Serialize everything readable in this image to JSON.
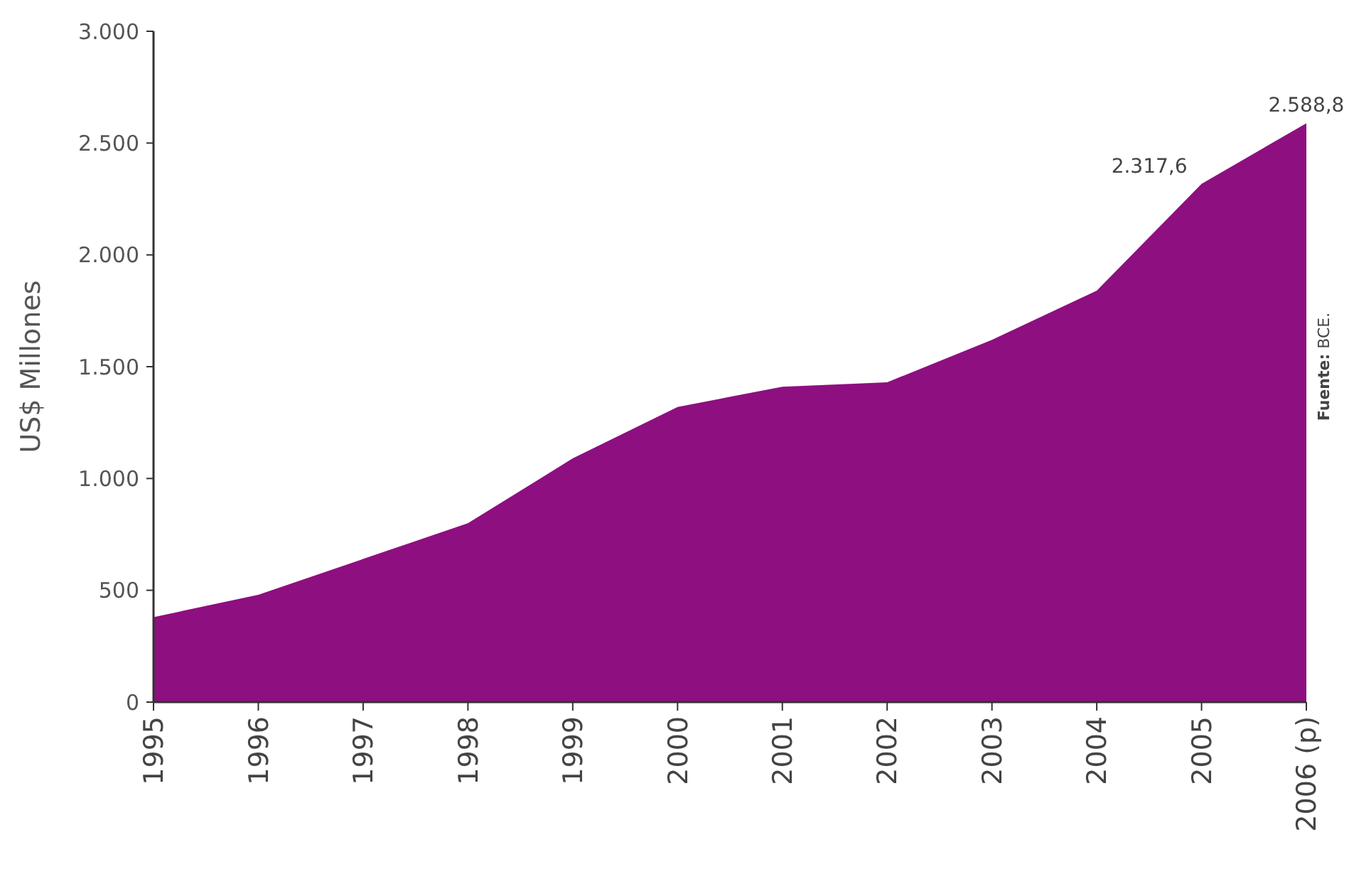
{
  "chart_data": {
    "type": "area",
    "ylabel": "US$ Millones",
    "categories": [
      "1995",
      "1996",
      "1997",
      "1998",
      "1999",
      "2000",
      "2001",
      "2002",
      "2003",
      "2004",
      "2005",
      "2006 (p)"
    ],
    "series": [
      {
        "color": "#8e0f80",
        "values": [
          380,
          480,
          640,
          800,
          1090,
          1320,
          1410,
          1430,
          1620,
          1840,
          2317.6,
          2588.8
        ],
        "value_labels": [
          null,
          null,
          null,
          null,
          null,
          null,
          null,
          null,
          null,
          null,
          "2.317,6",
          "2.588,8"
        ]
      }
    ],
    "ylim": [
      0,
      3000
    ],
    "yticks": [
      0,
      500,
      {
        "value": 1000,
        "label": "1.000"
      },
      {
        "value": 1500,
        "label": "1.500"
      },
      {
        "value": 2000,
        "label": "2.000"
      },
      {
        "value": 2500,
        "label": "2.500"
      },
      {
        "value": 3000,
        "label": "3.000"
      }
    ],
    "annotations": [
      "Fuente: BCE."
    ]
  }
}
